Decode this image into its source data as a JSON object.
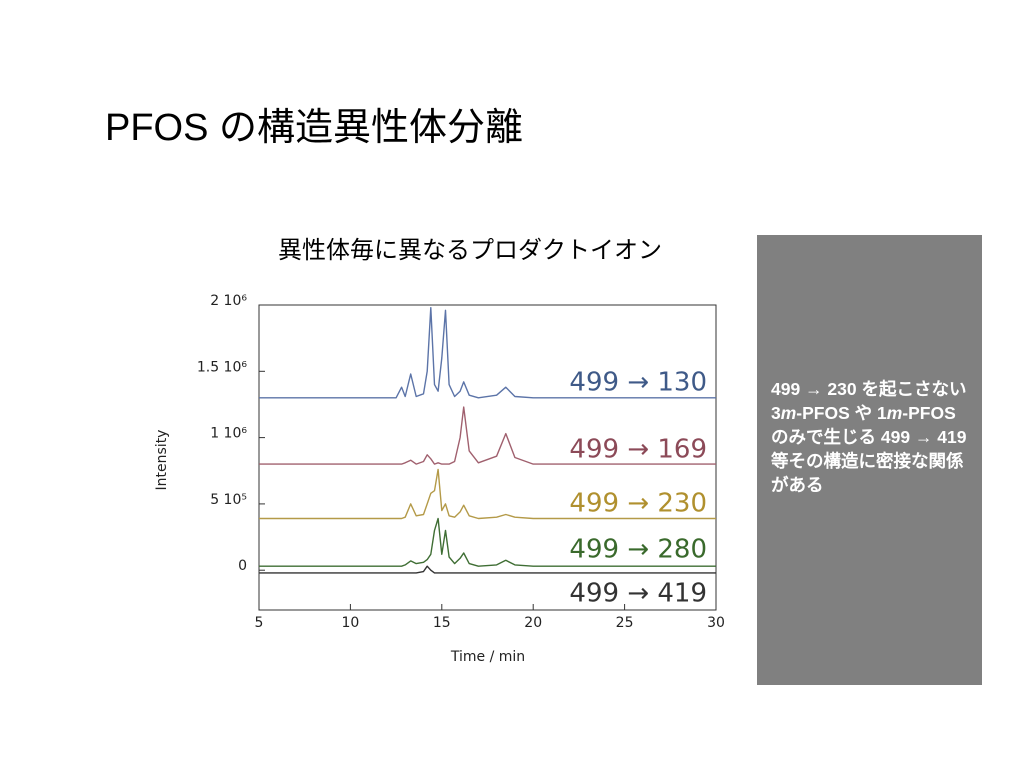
{
  "slide_title": "PFOS の構造異性体分離",
  "note_parts": [
    "499 → 230 を起こさない 3",
    "m",
    "-PFOS や 1",
    "m",
    "-PFOS のみで生じる 499 → 419 等その構造に密接な関係がある"
  ],
  "chart_data": {
    "type": "line",
    "title": "異性体毎に異なるプロダクトイオン",
    "x_label": "Time / min",
    "y_label": "Intensity",
    "xlim": [
      5,
      30
    ],
    "xticks": [
      5,
      10,
      15,
      20,
      25,
      30
    ],
    "ylim": [
      -300000.0,
      2000000.0
    ],
    "yticks": [
      0,
      {
        "value": 500000.0,
        "label": "5 10⁵"
      },
      {
        "value": 1000000.0,
        "label": "1 10⁶"
      },
      {
        "value": 1500000.0,
        "label": "1.5 10⁶"
      },
      {
        "value": 2000000.0,
        "label": "2 10⁶"
      }
    ],
    "x": [
      5,
      10,
      12.5,
      12.8,
      13.0,
      13.3,
      13.6,
      14.0,
      14.2,
      14.4,
      14.6,
      14.8,
      15.0,
      15.2,
      15.4,
      15.7,
      16.0,
      16.2,
      16.5,
      17.0,
      18.0,
      18.5,
      19.0,
      20,
      25,
      30
    ],
    "series": [
      {
        "name": "499 → 130",
        "color": "#5c74a8",
        "label_color": "#3f5a88",
        "values": [
          1300000.0,
          1300000.0,
          1300000.0,
          1380000.0,
          1310000.0,
          1480000.0,
          1310000.0,
          1330000.0,
          1500000.0,
          1980000.0,
          1400000.0,
          1350000.0,
          1600000.0,
          1960000.0,
          1400000.0,
          1310000.0,
          1350000.0,
          1420000.0,
          1320000.0,
          1300000.0,
          1320000.0,
          1380000.0,
          1310000.0,
          1300000.0,
          1300000.0,
          1300000.0
        ]
      },
      {
        "name": "499 → 169",
        "color": "#a0606e",
        "label_color": "#8c4a58",
        "values": [
          800000.0,
          800000.0,
          800000.0,
          800000.0,
          810000.0,
          830000.0,
          800000.0,
          820000.0,
          870000.0,
          840000.0,
          800000.0,
          810000.0,
          800000.0,
          800000.0,
          800000.0,
          820000.0,
          1000000.0,
          1230000.0,
          900000.0,
          810000.0,
          860000.0,
          1030000.0,
          850000.0,
          800000.0,
          800000.0,
          800000.0
        ]
      },
      {
        "name": "499 → 230",
        "color": "#b49a48",
        "label_color": "#b0902e",
        "values": [
          390000.0,
          390000.0,
          390000.0,
          390000.0,
          400000.0,
          500000.0,
          410000.0,
          420000.0,
          500000.0,
          580000.0,
          600000.0,
          760000.0,
          450000.0,
          500000.0,
          410000.0,
          400000.0,
          440000.0,
          490000.0,
          410000.0,
          390000.0,
          400000.0,
          420000.0,
          400000.0,
          390000.0,
          390000.0,
          390000.0
        ]
      },
      {
        "name": "499 → 280",
        "color": "#3f6e34",
        "label_color": "#3a6a2c",
        "values": [
          30000.0,
          30000.0,
          30000.0,
          30000.0,
          40000.0,
          70000.0,
          50000.0,
          60000.0,
          80000.0,
          120000.0,
          300000.0,
          390000.0,
          120000.0,
          300000.0,
          100000.0,
          50000.0,
          90000.0,
          130000.0,
          50000.0,
          30000.0,
          40000.0,
          75000.0,
          40000.0,
          30000.0,
          30000.0,
          30000.0
        ]
      },
      {
        "name": "499 → 419",
        "color": "#333333",
        "label_color": "#333333",
        "values": [
          -20000.0,
          -20000.0,
          -20000.0,
          -20000.0,
          -20000.0,
          -20000.0,
          -20000.0,
          -10000.0,
          30000.0,
          0,
          -20000.0,
          -20000.0,
          -20000.0,
          -20000.0,
          -20000.0,
          -20000.0,
          -20000.0,
          -20000.0,
          -20000.0,
          -20000.0,
          -20000.0,
          -20000.0,
          -20000.0,
          -20000.0,
          -20000.0,
          -20000.0
        ]
      }
    ]
  }
}
